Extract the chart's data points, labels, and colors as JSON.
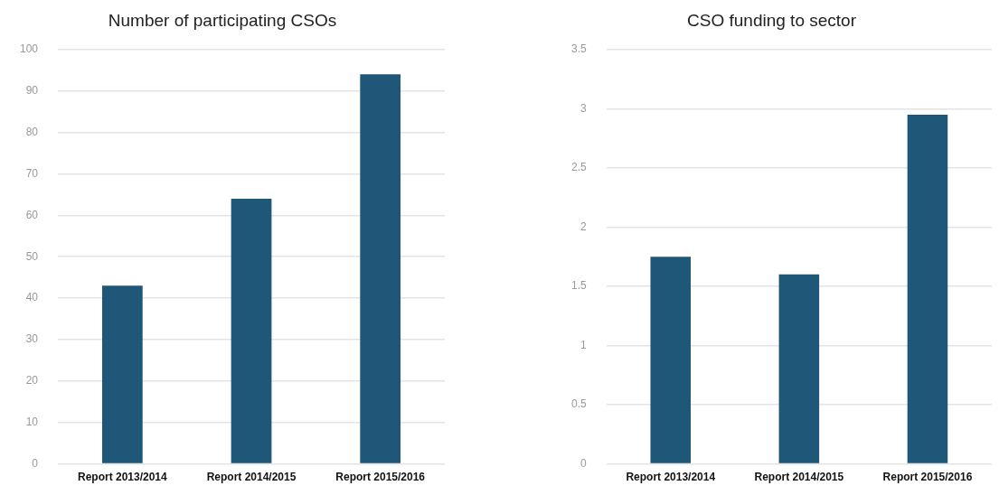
{
  "chart_data": [
    {
      "type": "bar",
      "title": "Number of participating CSOs",
      "categories": [
        "Report 2013/2014",
        "Report 2014/2015",
        "Report 2015/2016"
      ],
      "values": [
        43,
        64,
        94
      ],
      "color": "#1f5779",
      "ylim": [
        0,
        100
      ],
      "yticks": [
        0,
        10,
        20,
        30,
        40,
        50,
        60,
        70,
        80,
        90,
        100
      ],
      "grid": "y",
      "legend": false
    },
    {
      "type": "bar",
      "title": "CSO funding to sector",
      "categories": [
        "Report 2013/2014",
        "Report 2014/2015",
        "Report 2015/2016"
      ],
      "values": [
        1.75,
        1.6,
        2.95
      ],
      "color": "#1f5779",
      "ylim": [
        0,
        3.5
      ],
      "yticks": [
        0,
        0.5,
        1,
        1.5,
        2,
        2.5,
        3,
        3.5
      ],
      "grid": "y",
      "legend": false
    }
  ]
}
